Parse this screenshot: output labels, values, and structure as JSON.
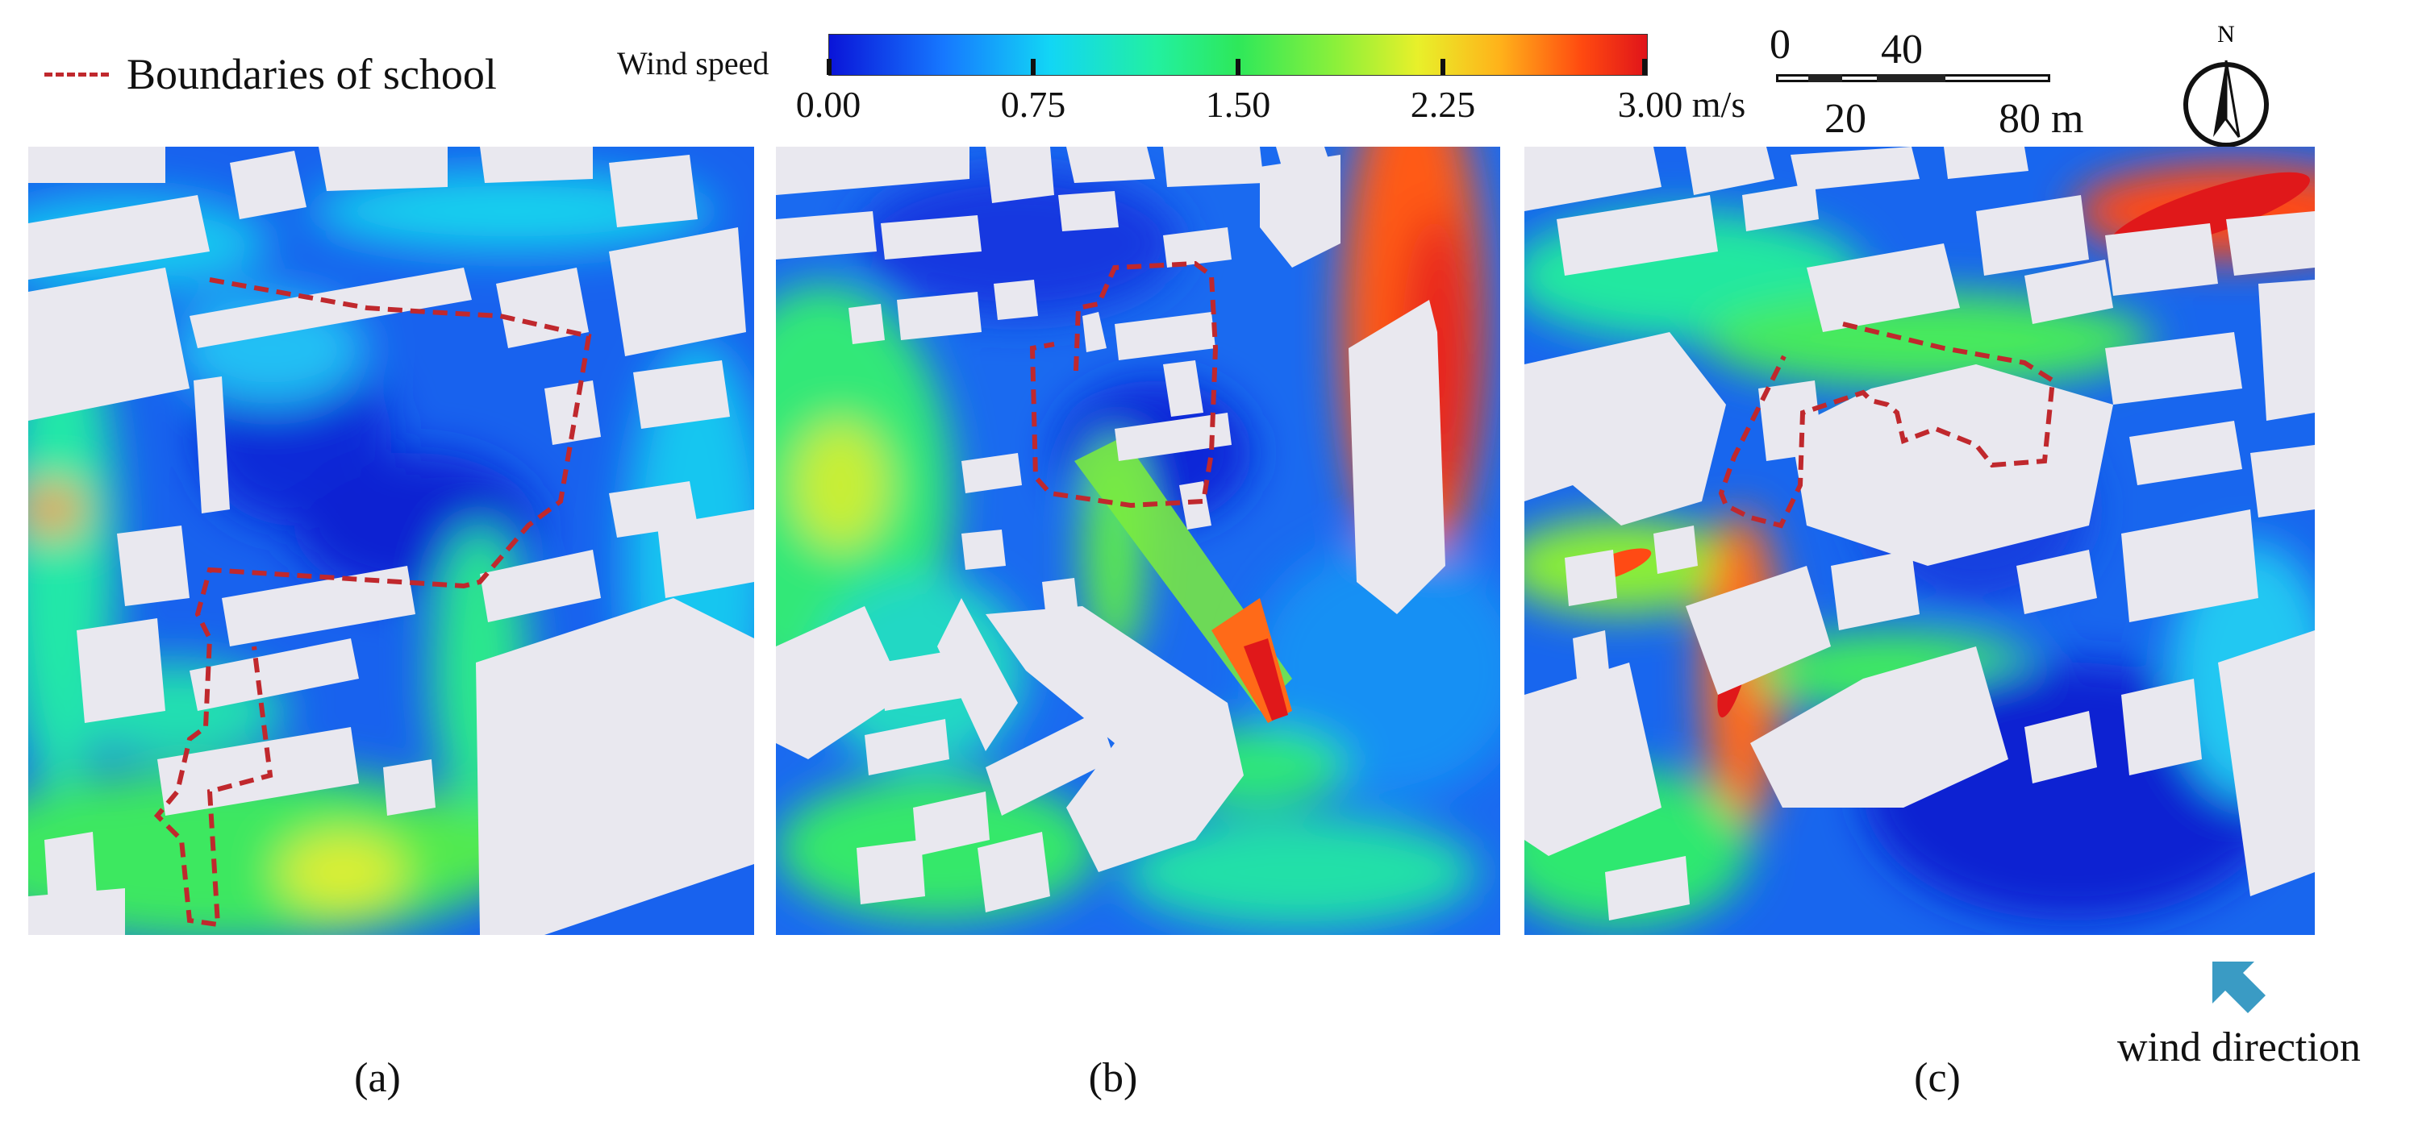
{
  "legend": {
    "boundary_label": "Boundaries of school",
    "boundary_color": "#c0282d"
  },
  "colorbar": {
    "title": "Wind speed",
    "ticks": [
      "0.00",
      "0.75",
      "1.50",
      "2.25",
      "3.00 m/s"
    ],
    "min": 0.0,
    "max": 3.0,
    "unit": "m/s",
    "colors": [
      "#0a14d8",
      "#1678ff",
      "#12d6f5",
      "#22f0a0",
      "#2ee85a",
      "#8cf03a",
      "#e8f02a",
      "#ffb21a",
      "#ff4a10",
      "#e0141a"
    ]
  },
  "scale_bar": {
    "top_labels": [
      "0",
      "40"
    ],
    "bottom_labels": [
      "20",
      "80 m"
    ]
  },
  "north_arrow": {
    "label": "N",
    "icon": "north-arrow-icon"
  },
  "panels": [
    {
      "label": "(a)"
    },
    {
      "label": "(b)"
    },
    {
      "label": "(c)"
    }
  ],
  "wind": {
    "label": "wind direction",
    "arrow_color": "#3a9bc4",
    "icon": "wind-direction-arrow-icon"
  },
  "building_color": "#e9e8ef"
}
